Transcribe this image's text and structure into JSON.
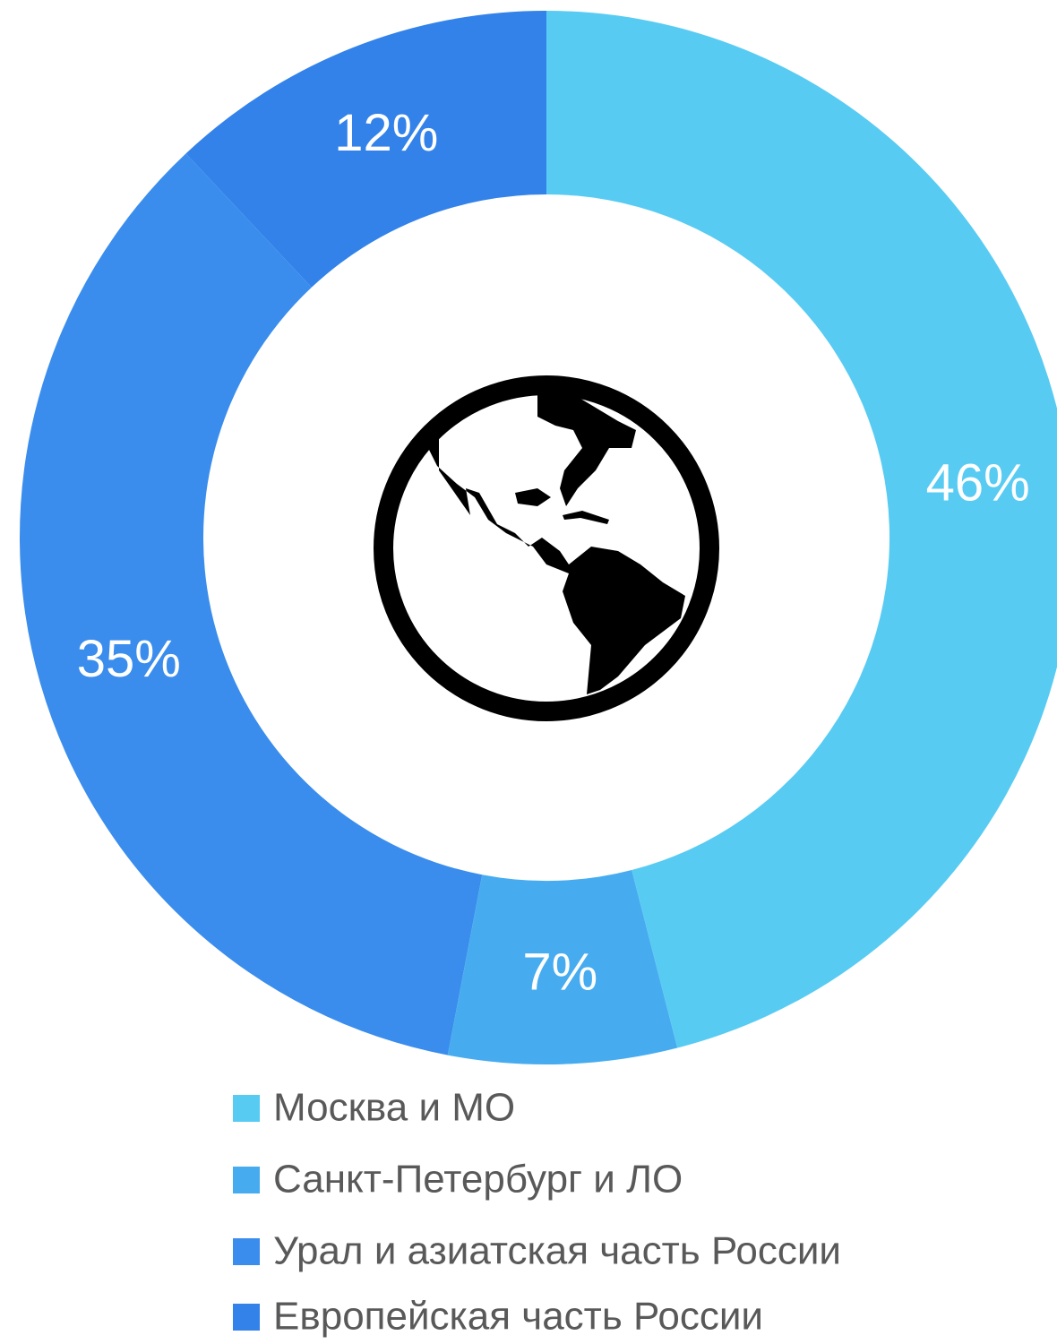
{
  "chart_data": {
    "type": "donut",
    "categories": [
      "Москва и МО",
      "Санкт-Петербург и ЛО",
      "Урал и азиатская часть России",
      "Европейская часть России"
    ],
    "values": [
      46,
      7,
      35,
      12
    ],
    "value_labels": [
      "46%",
      "7%",
      "35%",
      "12%"
    ],
    "colors": [
      "#58cbf3",
      "#46acef",
      "#3a8dec",
      "#3282ea"
    ],
    "legend": "bottom"
  }
}
